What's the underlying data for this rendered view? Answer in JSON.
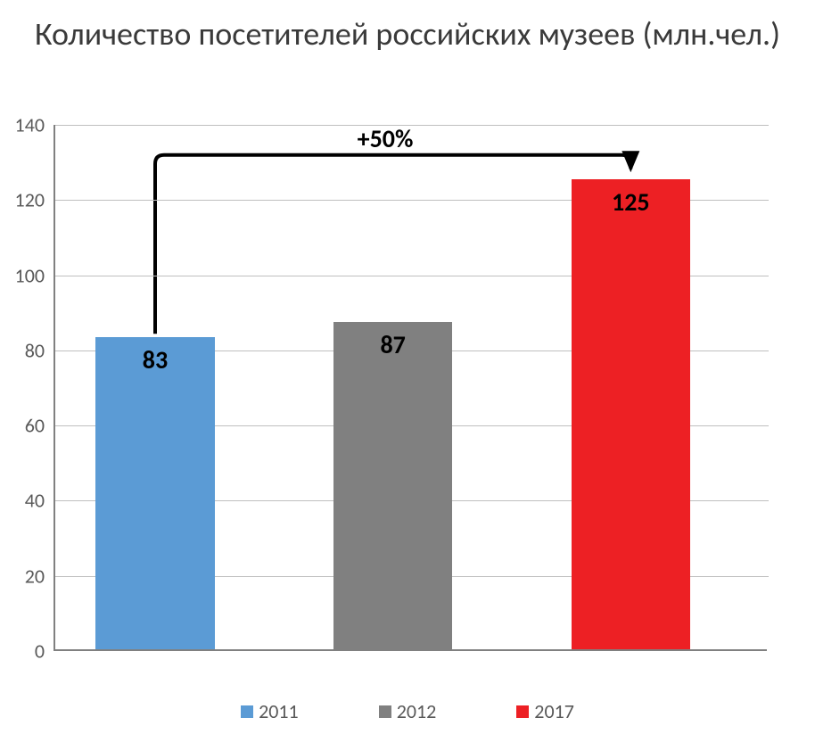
{
  "chart": {
    "type": "bar",
    "title": "Количество посетителей российских музеев (млн.чел.)",
    "title_fontsize": 36,
    "title_color": "#3a3a3a",
    "background_color": "#ffffff",
    "plot_border_color": "#808080",
    "grid_color": "#bfbfbf",
    "ylim": [
      0,
      140
    ],
    "ytick_step": 20,
    "yticks": [
      0,
      20,
      40,
      60,
      80,
      100,
      120,
      140
    ],
    "tick_fontsize": 22,
    "tick_color": "#595959",
    "bars": [
      {
        "category": "2011",
        "value": 83,
        "color": "#5b9bd5",
        "label": "83"
      },
      {
        "category": "2012",
        "value": 87,
        "color": "#808080",
        "label": "87"
      },
      {
        "category": "2017",
        "value": 125,
        "color": "#ed2024",
        "label": "125"
      }
    ],
    "bar_label_fontsize": 28,
    "bar_label_color": "#000000",
    "bar_label_fontweight": "bold",
    "bar_width_ratio": 0.5,
    "legend_items": [
      {
        "label": "2011",
        "color": "#5b9bd5"
      },
      {
        "label": "2012",
        "color": "#808080"
      },
      {
        "label": "2017",
        "color": "#ed2024"
      }
    ],
    "legend_fontsize": 22,
    "annotation": {
      "text": "+50%",
      "fontsize": 28,
      "fontweight": "bold",
      "color": "#000000",
      "arrow_color": "#000000",
      "arrow_stroke_width": 4,
      "from_bar_index": 0,
      "to_bar_index": 2,
      "y_level": 132
    }
  }
}
